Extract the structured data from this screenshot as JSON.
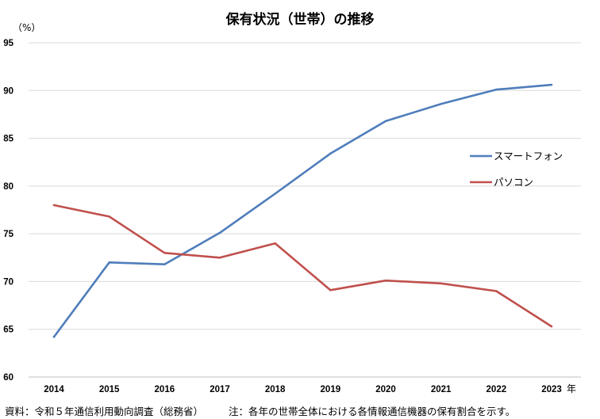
{
  "chart_data": {
    "type": "line",
    "title": "保有状況（世帯）の推移",
    "ylabel": "（%）",
    "xlabel": "年",
    "ylim": [
      60,
      95
    ],
    "yticks": [
      "60",
      "65",
      "70",
      "75",
      "80",
      "85",
      "90",
      "95"
    ],
    "categories": [
      "2014",
      "2015",
      "2016",
      "2017",
      "2018",
      "2019",
      "2020",
      "2021",
      "2022",
      "2023"
    ],
    "series": [
      {
        "name": "スマートフォン",
        "color": "#4f7dbb",
        "values": [
          64.2,
          72.0,
          71.8,
          75.1,
          79.2,
          83.4,
          86.8,
          88.6,
          90.1,
          90.6
        ]
      },
      {
        "name": "パソコン",
        "color": "#c0504d",
        "values": [
          78.0,
          76.8,
          73.0,
          72.5,
          74.0,
          69.1,
          70.1,
          69.8,
          69.0,
          65.3
        ]
      }
    ],
    "legend_position": "right",
    "grid": true
  },
  "footer": {
    "source": "資料：令和５年通信利用動向調査（総務省）",
    "note": "注：各年の世帯全体における各情報通信機器の保有割合を示す。"
  }
}
